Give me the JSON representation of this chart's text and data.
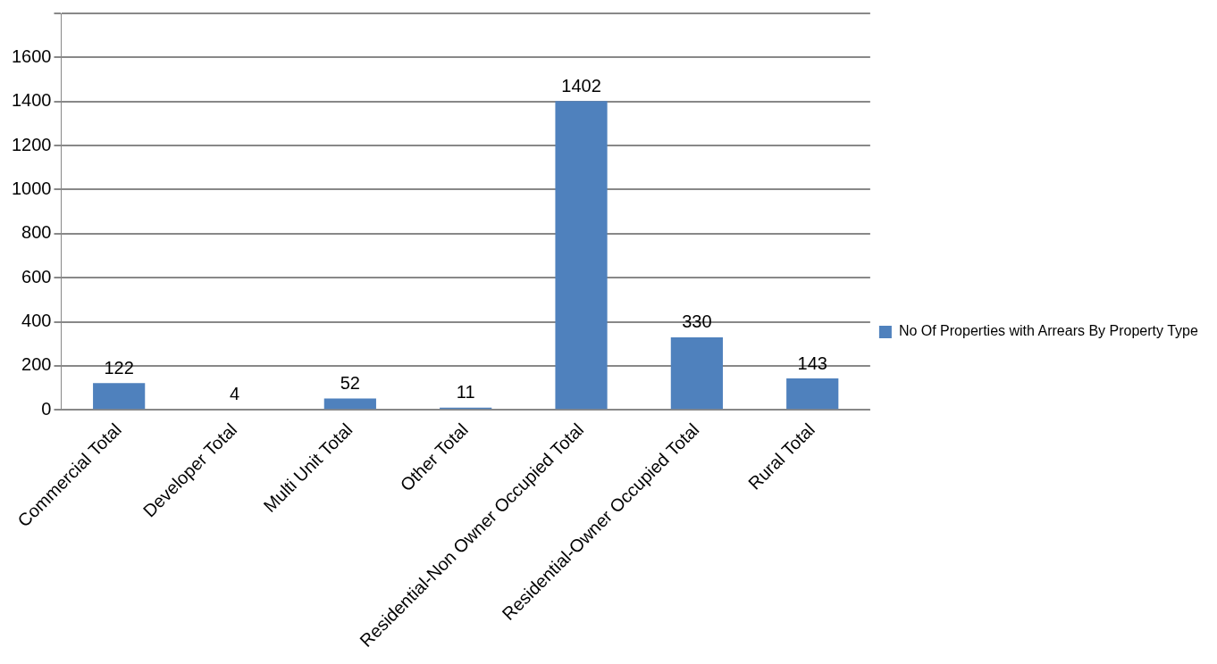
{
  "chart_data": {
    "type": "bar",
    "categories": [
      "Commercial Total",
      "Developer Total",
      "Multi Unit Total",
      "Other Total",
      "Residential-Non Owner Occupied Total",
      "Residential-Owner Occupied Total",
      "Rural Total"
    ],
    "series": [
      {
        "name": "No Of Properties with Arrears By Property Type",
        "color": "#4f81bd",
        "values": [
          122,
          4,
          52,
          11,
          1402,
          330,
          143
        ]
      }
    ],
    "ylim": [
      0,
      1800
    ],
    "yticks": [
      0,
      200,
      400,
      600,
      800,
      1000,
      1200,
      1400,
      1600,
      {
        "value": 1800,
        "label": null
      }
    ],
    "grid": "y",
    "legend": "right",
    "data_labels": true
  }
}
